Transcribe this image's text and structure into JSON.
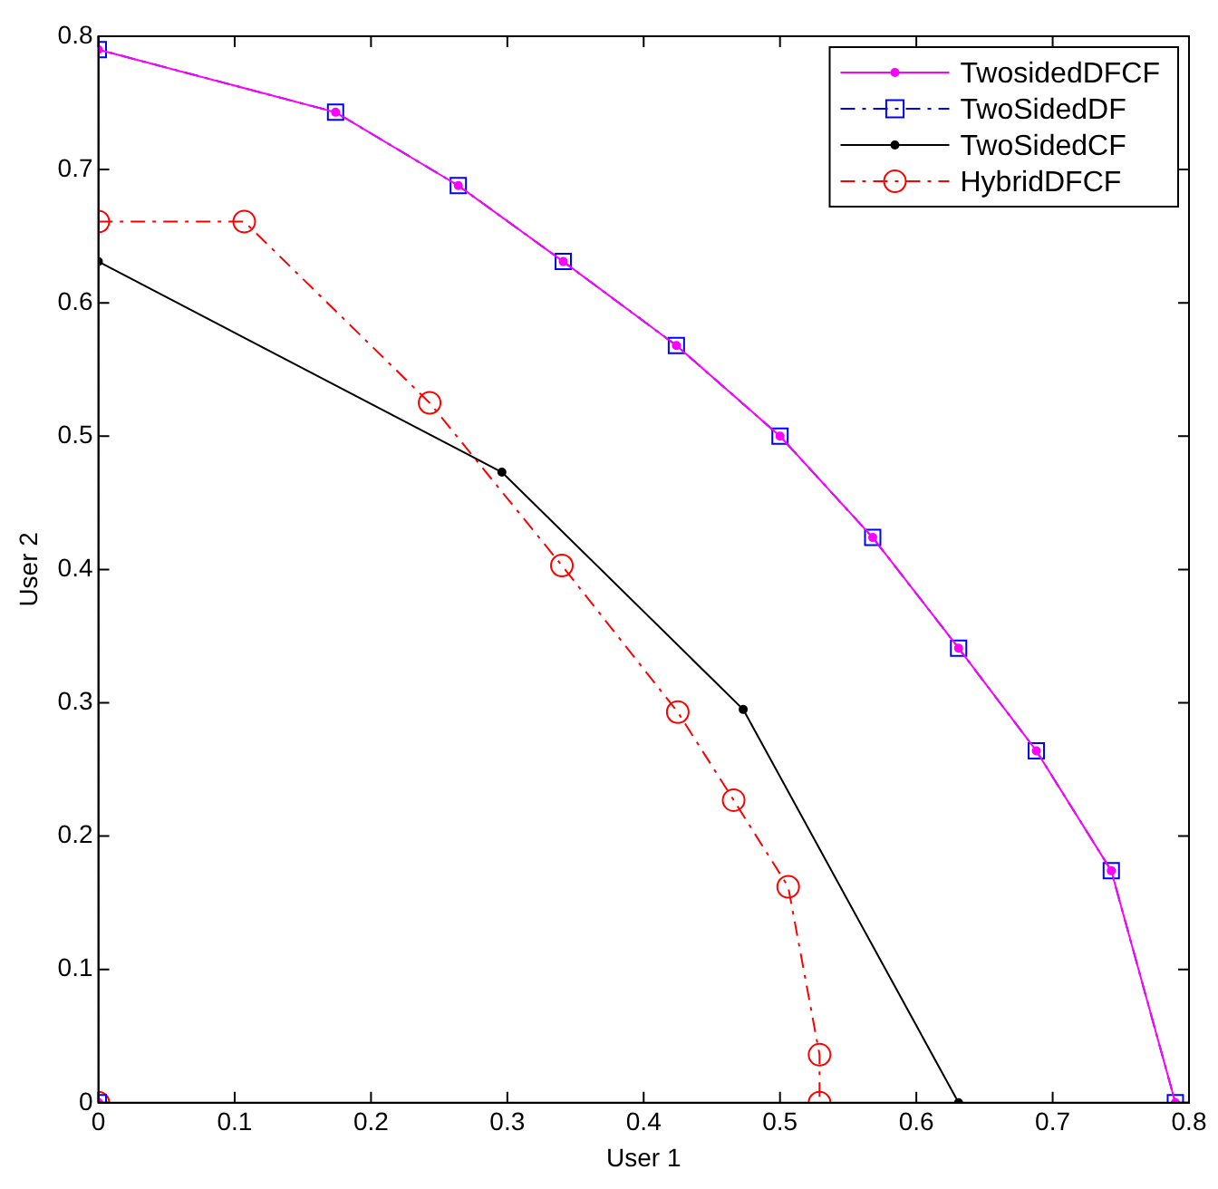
{
  "chart_data": {
    "type": "line",
    "xlabel": "User 1",
    "ylabel": "User 2",
    "xlim": [
      0,
      0.8
    ],
    "ylim": [
      0,
      0.8
    ],
    "xticks": [
      0,
      0.1,
      0.2,
      0.3,
      0.4,
      0.5,
      0.6,
      0.7,
      0.8
    ],
    "yticks": [
      0,
      0.1,
      0.2,
      0.3,
      0.4,
      0.5,
      0.6,
      0.7,
      0.8
    ],
    "grid": false,
    "legend": "top right",
    "series": [
      {
        "name": "TwosidedDFCF",
        "color": "#ff00ff",
        "marker": "circle",
        "line_style": "solid",
        "x": [
          0,
          0,
          0.174,
          0.264,
          0.341,
          0.424,
          0.5,
          0.568,
          0.631,
          0.688,
          0.743,
          0.79
        ],
        "values": [
          0,
          0.79,
          0.743,
          0.688,
          0.631,
          0.568,
          0.5,
          0.424,
          0.341,
          0.264,
          0.174,
          0
        ]
      },
      {
        "name": "TwoSidedDF",
        "color": "#0000ff",
        "marker": "square",
        "line_style": "dashed",
        "x": [
          0,
          0,
          0.174,
          0.264,
          0.341,
          0.424,
          0.5,
          0.568,
          0.631,
          0.688,
          0.743,
          0.79
        ],
        "values": [
          0,
          0.79,
          0.743,
          0.688,
          0.631,
          0.568,
          0.5,
          0.424,
          0.341,
          0.264,
          0.174,
          0
        ]
      },
      {
        "name": "TwoSidedCF",
        "color": "#000000",
        "marker": "circle",
        "line_style": "solid",
        "x": [
          0,
          0,
          0.296,
          0.473,
          0.631
        ],
        "values": [
          0,
          0.631,
          0.473,
          0.295,
          0
        ]
      },
      {
        "name": "HybridDFCF",
        "color": "#ff0000",
        "marker": "circle",
        "line_style": "dashed",
        "x": [
          0,
          0,
          0.107,
          0.243,
          0.34,
          0.425,
          0.466,
          0.506,
          0.529,
          0.529
        ],
        "values": [
          0,
          0.661,
          0.661,
          0.525,
          0.403,
          0.293,
          0.227,
          0.162,
          0.036,
          0
        ]
      }
    ]
  }
}
